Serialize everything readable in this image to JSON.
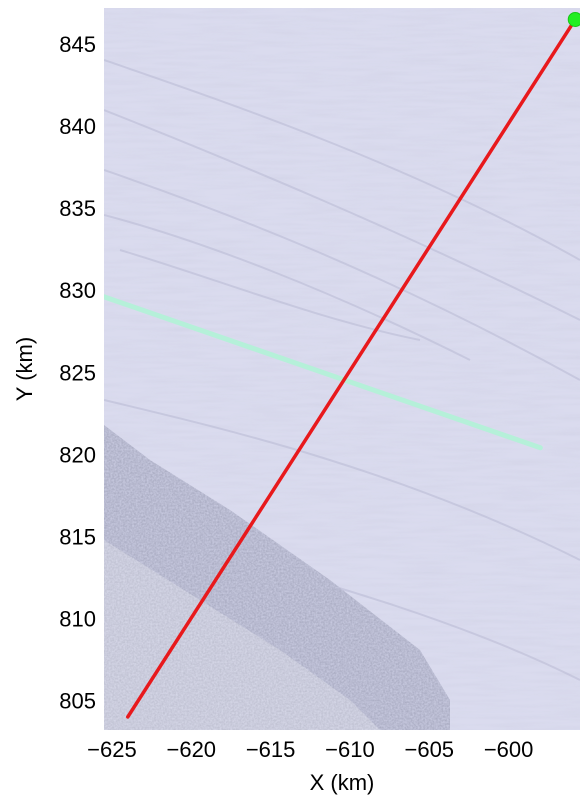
{
  "figure": {
    "xlabel": "X (km)",
    "ylabel": "Y (km)"
  },
  "chart_data": {
    "type": "map",
    "xlim": [
      -625.5,
      -595.5
    ],
    "ylim": [
      803.2,
      847.2
    ],
    "x_ticks": [
      -625,
      -620,
      -615,
      -610,
      -605,
      -600
    ],
    "x_tick_labels": [
      "−625",
      "−620",
      "−615",
      "−610",
      "−605",
      "−600"
    ],
    "y_ticks": [
      805,
      810,
      815,
      820,
      825,
      830,
      835,
      840,
      845
    ],
    "y_tick_labels": [
      "805",
      "810",
      "815",
      "820",
      "825",
      "830",
      "835",
      "840",
      "845"
    ],
    "grid": false,
    "background": "satellite imagery of ice surface with crevasse field (lower left)",
    "colors": {
      "ice": "#dadbee",
      "track_line": "#e8191c",
      "start_marker": "#22ee22",
      "crossing_line": "#b4f2d8"
    },
    "track": {
      "start": [
        -595.8,
        846.5
      ],
      "end": [
        -624.0,
        804.0
      ]
    },
    "start_marker": {
      "x": -595.8,
      "y": 846.5,
      "shape": "circle"
    },
    "crossing_line": {
      "start": [
        -625.5,
        829.6
      ],
      "end": [
        -598.0,
        820.4
      ]
    }
  }
}
